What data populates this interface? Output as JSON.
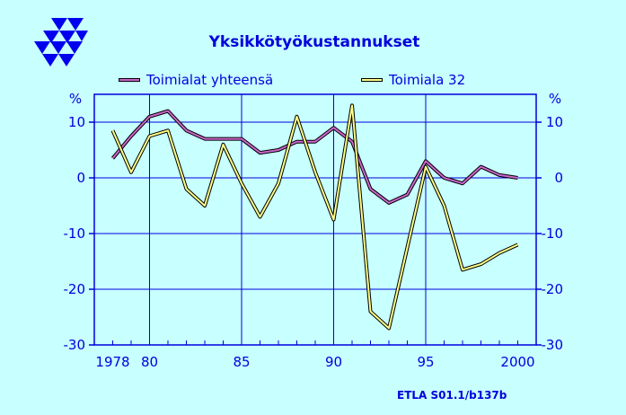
{
  "chart_data": {
    "type": "line",
    "title": "Yksikkötyökustannukset",
    "ylabel": "%",
    "ylim": [
      -30,
      15
    ],
    "xlim": [
      1977,
      2001
    ],
    "y_ticks": [
      -30,
      -20,
      -10,
      0,
      10
    ],
    "x_tick_labels": [
      {
        "x": 1978,
        "label": "1978"
      },
      {
        "x": 1980,
        "label": "80"
      },
      {
        "x": 1985,
        "label": "85"
      },
      {
        "x": 1990,
        "label": "90"
      },
      {
        "x": 1995,
        "label": "95"
      },
      {
        "x": 2000,
        "label": "2000"
      }
    ],
    "grid": true,
    "legend_position": "top",
    "x": [
      1978,
      1979,
      1980,
      1981,
      1982,
      1983,
      1984,
      1985,
      1986,
      1987,
      1988,
      1989,
      1990,
      1991,
      1992,
      1993,
      1994,
      1995,
      1996,
      1997,
      1998,
      1999,
      2000
    ],
    "series": [
      {
        "name": "Toimialat yhteensä",
        "color": "#cc66cc",
        "values": [
          3.5,
          7.5,
          11,
          12,
          8.5,
          7,
          7,
          7,
          4.5,
          5,
          6.5,
          6.5,
          9,
          6.5,
          -2,
          -4.5,
          -3,
          3,
          0,
          -1,
          2,
          0.5,
          0
        ]
      },
      {
        "name": "Toimiala 32",
        "color": "#ffff88",
        "values": [
          8.5,
          1,
          7.5,
          8.5,
          -2,
          -5,
          6,
          -1,
          -7,
          -1,
          11,
          1,
          -7.5,
          13,
          -24,
          -27,
          -12.5,
          2,
          -5,
          -16.5,
          -15.5,
          -13.5,
          -12
        ]
      }
    ]
  },
  "credit": "ETLA S01.1/b137b",
  "colors": {
    "text": "#0000dd",
    "plot_bg": "#c8ffff",
    "frame": "#0000dd",
    "grid": "#0000dd"
  }
}
